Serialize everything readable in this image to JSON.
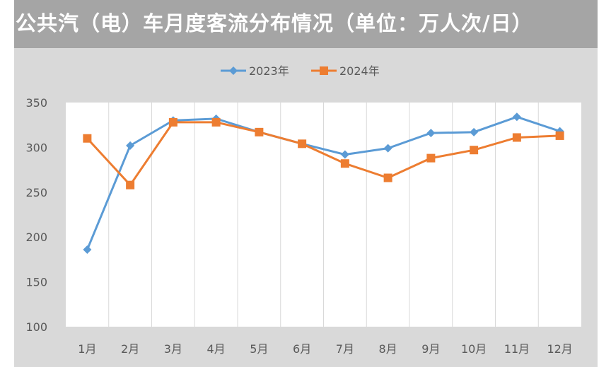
{
  "chart_data": {
    "type": "line",
    "title": "公共汽（电）车月度客流分布情况（单位：万人次/日）",
    "categories": [
      "1月",
      "2月",
      "3月",
      "4月",
      "5月",
      "6月",
      "7月",
      "8月",
      "9月",
      "10月",
      "11月",
      "12月"
    ],
    "ylim": [
      100,
      350
    ],
    "yticks": [
      100,
      150,
      200,
      250,
      300,
      350
    ],
    "grid": "vertical",
    "legend": "top",
    "series": [
      {
        "name": "2023年",
        "color": "#5b9bd5",
        "marker": "diamond",
        "values": [
          186,
          302,
          330,
          332,
          317,
          304,
          292,
          299,
          316,
          317,
          334,
          318
        ]
      },
      {
        "name": "2024年",
        "color": "#ed7d31",
        "marker": "square",
        "values": [
          310,
          258,
          328,
          328,
          317,
          304,
          282,
          266,
          288,
          297,
          311,
          313
        ]
      }
    ]
  }
}
